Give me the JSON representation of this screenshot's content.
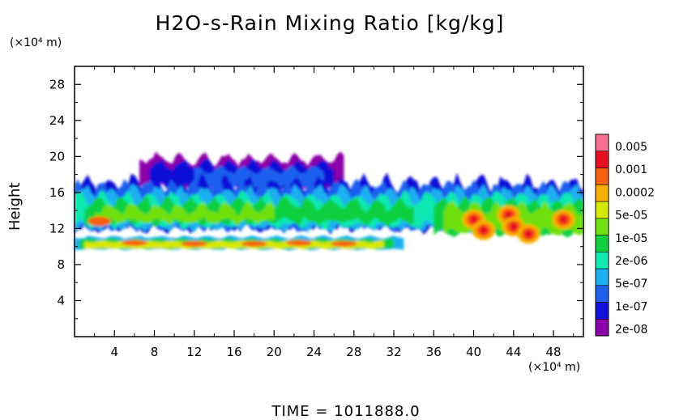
{
  "chart_data": {
    "type": "heatmap",
    "title": "H2O-s-Rain Mixing Ratio [kg/kg]",
    "ylabel": "Height",
    "x_unit_label": "(×10⁴ m)",
    "y_unit_label": "(×10⁴ m)",
    "footer": "TIME = 1011888.0",
    "xlim": [
      0,
      51
    ],
    "ylim": [
      0,
      30
    ],
    "x_ticks": [
      "4",
      "8",
      "12",
      "16",
      "20",
      "24",
      "28",
      "32",
      "36",
      "40",
      "44",
      "48"
    ],
    "y_ticks": [
      "4",
      "8",
      "12",
      "16",
      "20",
      "24",
      "28"
    ],
    "colorbar_labels": [
      "0.005",
      "0.001",
      "0.0002",
      "5e-05",
      "1e-05",
      "2e-06",
      "5e-07",
      "1e-07",
      "2e-08"
    ],
    "colorbar_colors": [
      "#8b00a8",
      "#1010d8",
      "#1e5ef0",
      "#1eb0f0",
      "#10e8b0",
      "#10d040",
      "#70e010",
      "#d8e800",
      "#f8b000",
      "#f86010",
      "#e81020",
      "#f87090"
    ],
    "regions": [
      {
        "desc": "upper cloud layer",
        "x": [
          6,
          27
        ],
        "y": [
          16,
          20
        ],
        "level": "1e-07"
      },
      {
        "desc": "main layer",
        "x": [
          0,
          51
        ],
        "y": [
          12,
          17
        ],
        "level": "5e-07"
      },
      {
        "desc": "lower thin layer",
        "x": [
          0,
          33
        ],
        "y": [
          9.5,
          11
        ],
        "level": "1e-05"
      },
      {
        "desc": "intense core east",
        "x": [
          38,
          51
        ],
        "y": [
          10,
          15
        ],
        "level": "0.001"
      }
    ]
  }
}
